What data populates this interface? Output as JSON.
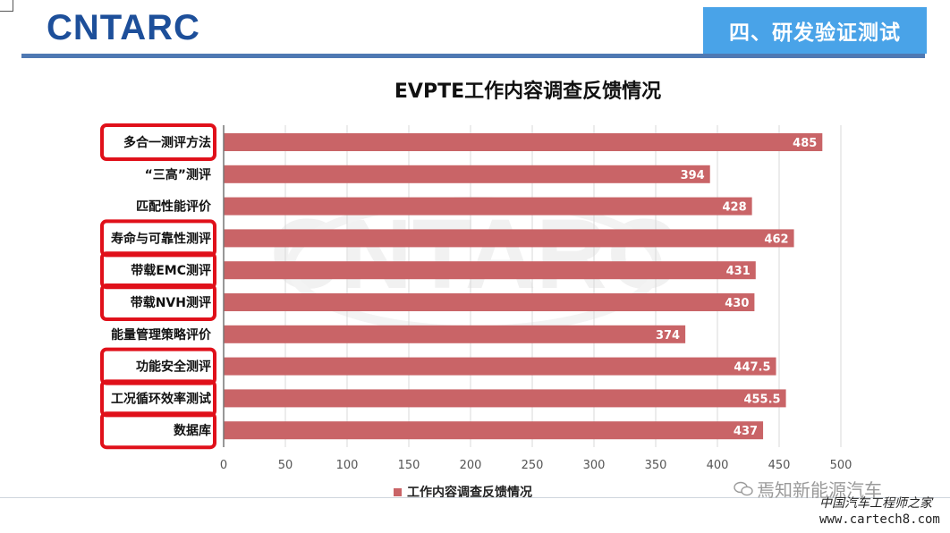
{
  "header": {
    "logo_text": "CNTARC",
    "section_title": "四、研发验证测试"
  },
  "chart_data": {
    "type": "bar",
    "orientation": "horizontal",
    "title": "EVPTE工作内容调查反馈情况",
    "categories": [
      "多合一测评方法",
      "“三高”测评",
      "匹配性能评价",
      "寿命与可靠性测评",
      "带载EMC测评",
      "带载NVH测评",
      "能量管理策略评价",
      "功能安全测评",
      "工况循环效率测试",
      "数据库"
    ],
    "values": [
      485,
      394,
      428,
      462,
      431,
      430,
      374,
      447.5,
      455.5,
      437
    ],
    "value_labels": [
      "485",
      "394",
      "428",
      "462",
      "431",
      "430",
      "374",
      "447.5",
      "455.5",
      "437"
    ],
    "highlighted": [
      true,
      false,
      false,
      true,
      true,
      true,
      false,
      true,
      true,
      true
    ],
    "xlim": [
      0,
      500
    ],
    "xticks": [
      "0",
      "50",
      "100",
      "150",
      "200",
      "250",
      "300",
      "350",
      "400",
      "450",
      "500"
    ],
    "grid": true,
    "legend": {
      "position": "bottom",
      "label": "工作内容调查反馈情况"
    },
    "series": [
      {
        "name": "工作内容调查反馈情况",
        "color": "#c96467"
      }
    ],
    "highlight_color": "#e0101a",
    "watermark_text": "CNTARC"
  },
  "watermark": {
    "wechat": "焉知新能源汽车",
    "line1": "中国汽车工程师之家",
    "line2": "www.cartech8.com"
  }
}
